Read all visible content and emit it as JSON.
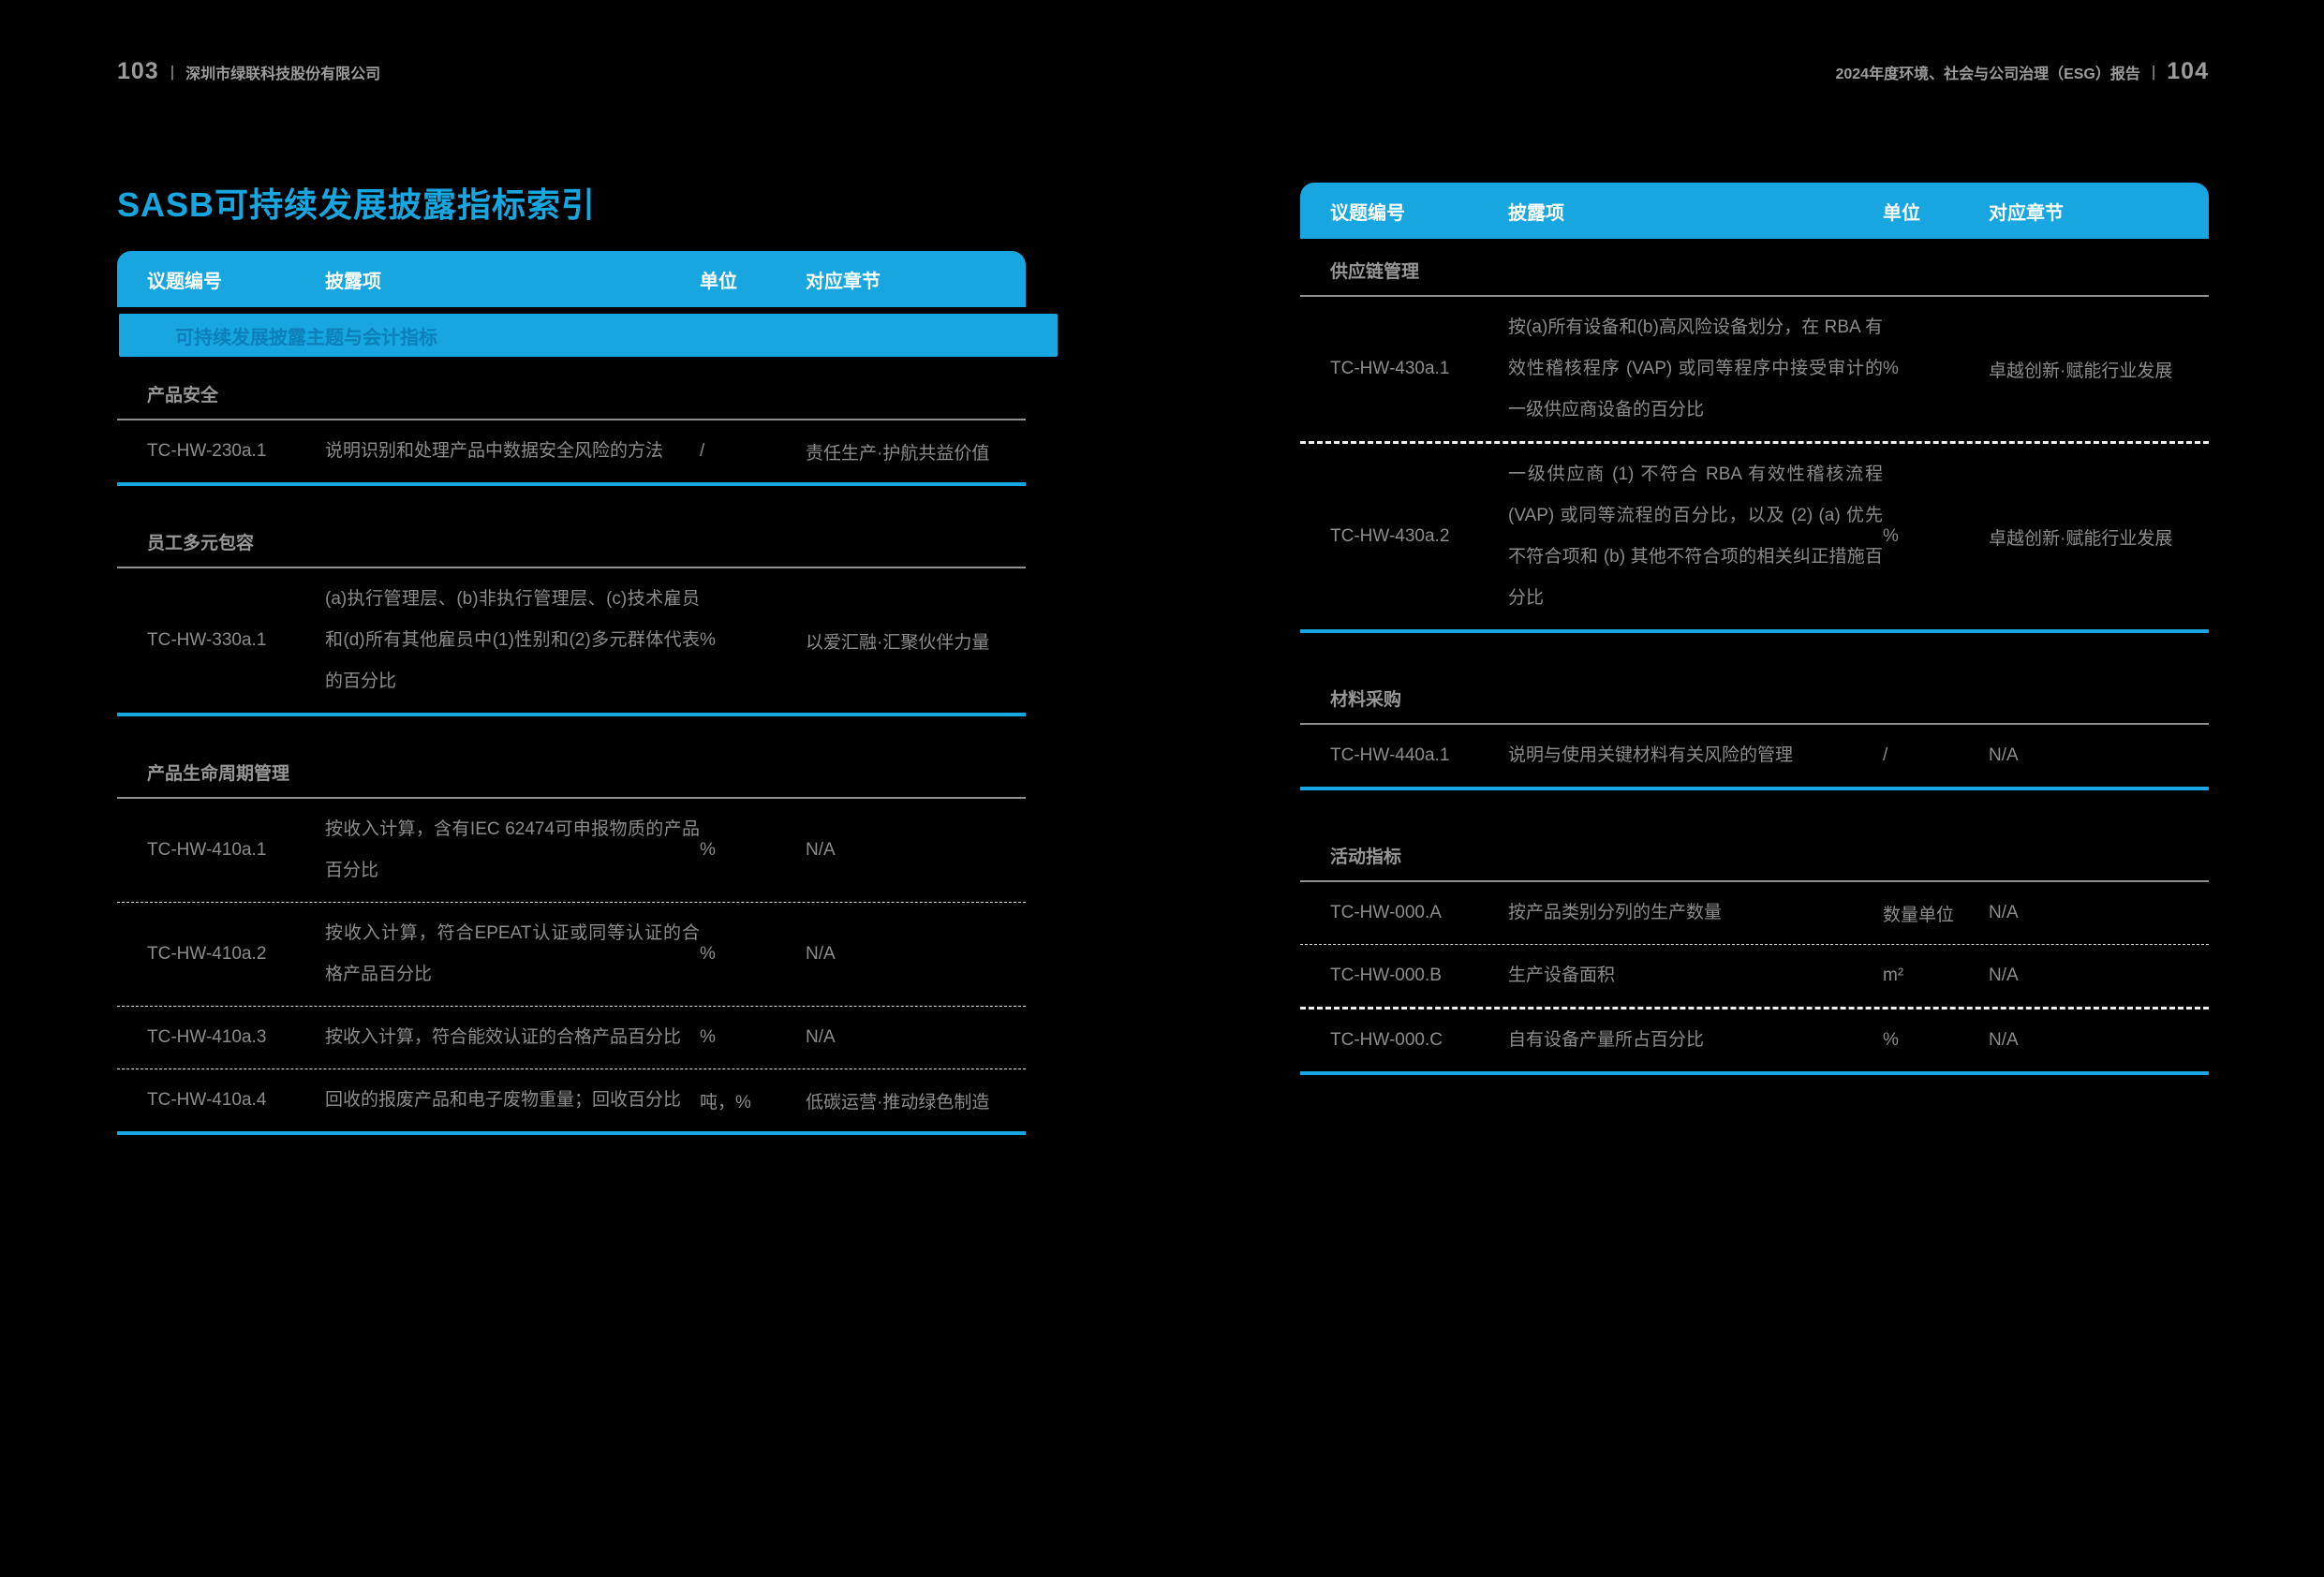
{
  "running_header": {
    "left_page_number": "103",
    "separator": "|",
    "company_name": "深圳市绿联科技股份有限公司",
    "right_report_title": "2024年度环境、社会与公司治理（ESG）报告",
    "right_page_number": "104"
  },
  "title": "SASB可持续发展披露指标索引",
  "columns": {
    "topic_code": "议题编号",
    "disclosure": "披露项",
    "unit": "单位",
    "chapter": "对应章节"
  },
  "band_label": "可持续发展披露主题与会计指标",
  "left_table": {
    "sections": [
      {
        "name": "产品安全",
        "rows": [
          {
            "code": "TC-HW-230a.1",
            "disclosure": "说明识别和处理产品中数据安全风险的方法",
            "unit": "/",
            "chapter": "责任生产·护航共益价值"
          }
        ]
      },
      {
        "name": "员工多元包容",
        "rows": [
          {
            "code": "TC-HW-330a.1",
            "disclosure": "(a)执行管理层、(b)非执行管理层、(c)技术雇员和(d)所有其他雇员中(1)性别和(2)多元群体代表的百分比",
            "unit": "%",
            "chapter": "以爱汇融·汇聚伙伴力量"
          }
        ]
      },
      {
        "name": "产品生命周期管理",
        "rows": [
          {
            "code": "TC-HW-410a.1",
            "disclosure": "按收入计算，含有IEC  62474可申报物质的产品百分比",
            "unit": "%",
            "chapter": "N/A"
          },
          {
            "code": "TC-HW-410a.2",
            "disclosure": "按收入计算，符合EPEAT认证或同等认证的合格产品百分比",
            "unit": "%",
            "chapter": "N/A"
          },
          {
            "code": "TC-HW-410a.3",
            "disclosure": "按收入计算，符合能效认证的合格产品百分比",
            "unit": "%",
            "chapter": "N/A"
          },
          {
            "code": "TC-HW-410a.4",
            "disclosure": "回收的报废产品和电子废物重量；回收百分比",
            "unit": "吨，%",
            "chapter": "低碳运营·推动绿色制造"
          }
        ]
      }
    ]
  },
  "right_table": {
    "sections": [
      {
        "name": "供应链管理",
        "rows": [
          {
            "code": "TC-HW-430a.1",
            "disclosure": "按(a)所有设备和(b)高风险设备划分，在 RBA 有效性稽核程序 (VAP) 或同等程序中接受审计的一级供应商设备的百分比",
            "unit": "%",
            "chapter": "卓越创新·赋能行业发展"
          },
          {
            "code": "TC-HW-430a.2",
            "disclosure": "一级供应商 (1) 不符合 RBA 有效性稽核流程 (VAP) 或同等流程的百分比，以及 (2) (a) 优先不符合项和 (b) 其他不符合项的相关纠正措施百分比",
            "unit": "%",
            "chapter": "卓越创新·赋能行业发展"
          }
        ]
      },
      {
        "name": "材料采购",
        "rows": [
          {
            "code": "TC-HW-440a.1",
            "disclosure": "说明与使用关键材料有关风险的管理",
            "unit": "/",
            "chapter": "N/A"
          }
        ]
      },
      {
        "name": "活动指标",
        "rows": [
          {
            "code": "TC-HW-000.A",
            "disclosure": "按产品类别分列的生产数量",
            "unit": "数量单位",
            "chapter": "N/A"
          },
          {
            "code": "TC-HW-000.B",
            "disclosure": "生产设备面积",
            "unit": "m²",
            "chapter": "N/A"
          },
          {
            "code": "TC-HW-000.C",
            "disclosure": "自有设备产量所占百分比",
            "unit": "%",
            "chapter": "N/A"
          }
        ]
      }
    ]
  },
  "colors": {
    "accent_blue": "#17a6e0",
    "band_text_blue": "#0d80ba",
    "body_gray": "#8c8c8c",
    "background": "#000000"
  }
}
